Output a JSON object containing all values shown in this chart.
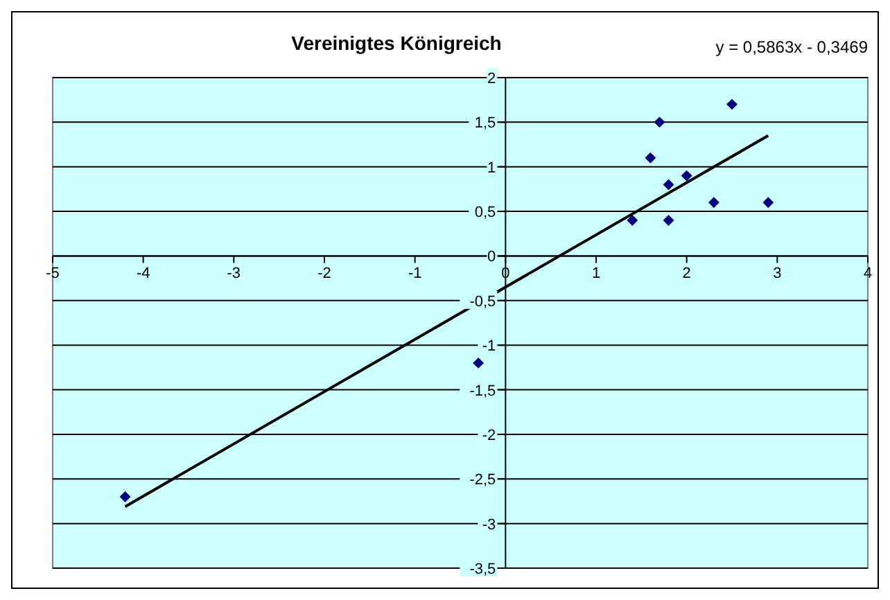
{
  "chart_data": {
    "type": "scatter",
    "title": "Vereinigtes Königreich",
    "annotations": [
      "y = 0,5863x - 0,3469"
    ],
    "series": [
      {
        "color": "#000080",
        "marker": "diamond",
        "x": [
          -4.2,
          -0.3,
          1.4,
          1.6,
          1.7,
          1.8,
          1.8,
          2.0,
          2.3,
          2.5,
          2.9
        ],
        "values": [
          -2.7,
          -1.2,
          0.4,
          1.1,
          1.5,
          0.8,
          0.4,
          0.9,
          0.6,
          1.7,
          0.6
        ]
      },
      {
        "type": "line",
        "color": "#000000",
        "marker": "none",
        "line_style": "solid",
        "x": [
          -4.2,
          2.9
        ],
        "values": [
          -2.81,
          1.35
        ]
      }
    ],
    "xlim": [
      -5,
      4
    ],
    "xticks": [
      -5,
      -4,
      -3,
      -2,
      -1,
      0,
      1,
      2,
      3,
      4
    ],
    "ylim": [
      -3.5,
      2
    ],
    "yticks": [
      {
        "value": -3.5,
        "label": "-3,5"
      },
      -3,
      {
        "value": -2.5,
        "label": "-2,5"
      },
      -2,
      {
        "value": -1.5,
        "label": "-1,5"
      },
      -1,
      {
        "value": -0.5,
        "label": "-0,5"
      },
      0,
      {
        "value": 0.5,
        "label": "0,5"
      },
      1,
      {
        "value": 1.5,
        "label": "1,5"
      },
      2
    ],
    "grid": "y"
  }
}
